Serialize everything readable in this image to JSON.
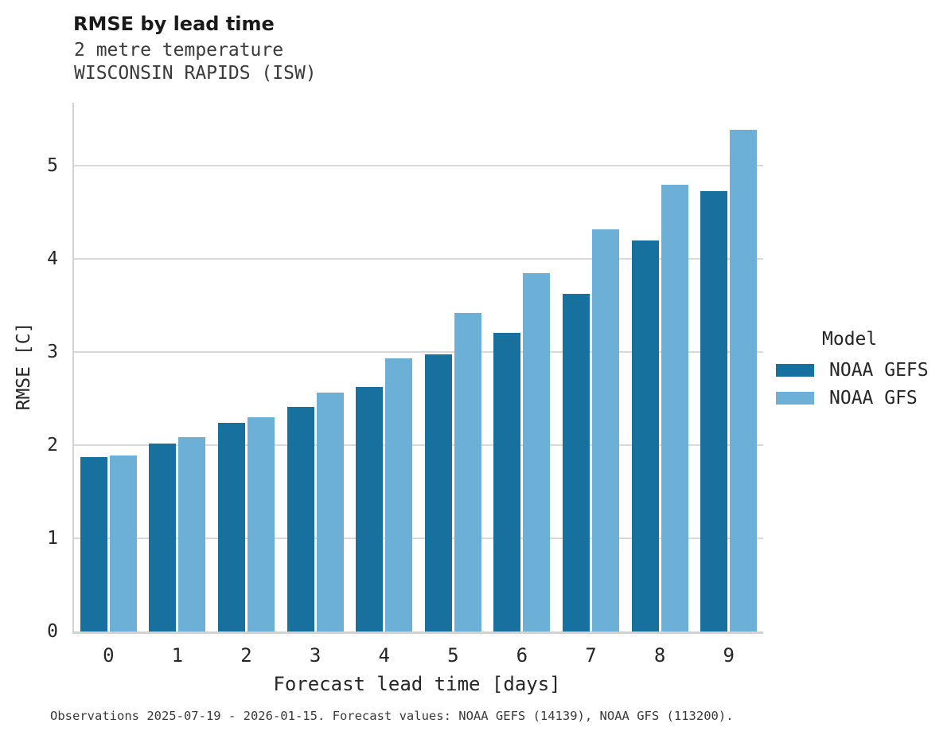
{
  "header": {
    "title": "RMSE by lead time",
    "subtitle1": "2 metre temperature",
    "subtitle2": "WISCONSIN RAPIDS (ISW)"
  },
  "chart_data": {
    "type": "bar",
    "title": "RMSE by lead time",
    "subtitle": [
      "2 metre temperature",
      "WISCONSIN RAPIDS (ISW)"
    ],
    "categories": [
      "0",
      "1",
      "2",
      "3",
      "4",
      "5",
      "6",
      "7",
      "8",
      "9"
    ],
    "series": [
      {
        "name": "NOAA GEFS",
        "color": "#17709e",
        "values": [
          1.87,
          2.02,
          2.24,
          2.41,
          2.63,
          2.98,
          3.21,
          3.63,
          4.2,
          4.73
        ]
      },
      {
        "name": "NOAA GFS",
        "color": "#6cb0d8",
        "values": [
          1.89,
          2.09,
          2.3,
          2.57,
          2.93,
          3.42,
          3.85,
          4.32,
          4.8,
          5.39
        ]
      }
    ],
    "xlabel": "Forecast lead time [days]",
    "ylabel": "RMSE [C]",
    "ylim": [
      0,
      5.68
    ],
    "yticks": [
      0,
      1,
      2,
      3,
      4,
      5
    ],
    "grid": true,
    "legend_title": "Model",
    "legend_position": "right",
    "gridline_color": "#d9d9d9",
    "spine_color": "#d2d2d2"
  },
  "caption": "Observations 2025-07-19 - 2026-01-15. Forecast values: NOAA GEFS (14139), NOAA GFS (113200)."
}
